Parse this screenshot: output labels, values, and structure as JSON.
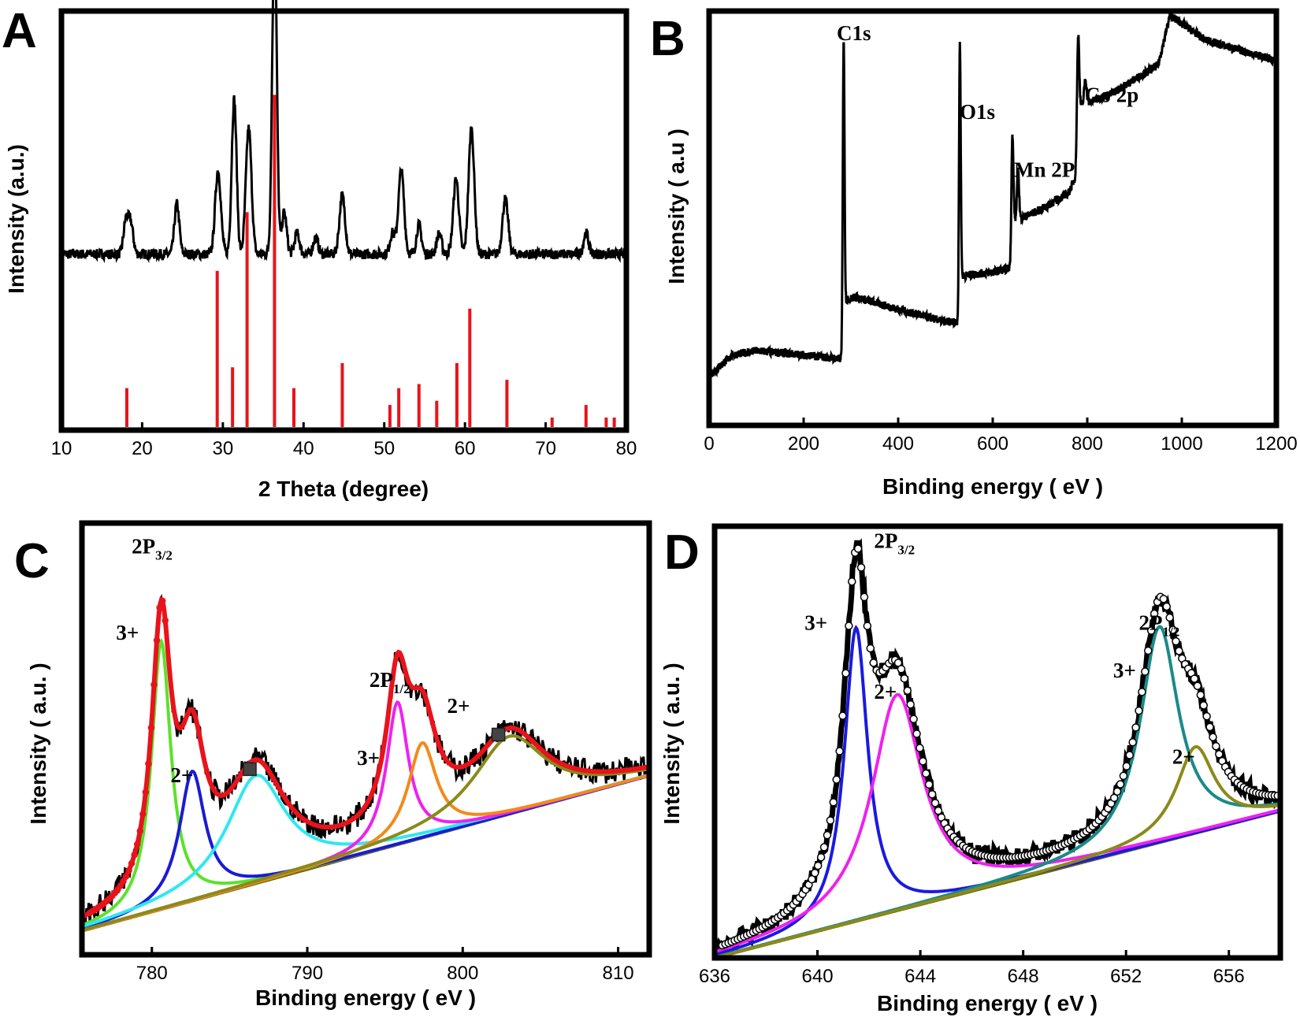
{
  "chart_data": [
    {
      "panel": "A",
      "type": "line",
      "xlabel": "2 Theta (degree)",
      "ylabel": "Intensity (a.u.)",
      "xlim": [
        10,
        80
      ],
      "xticks": [
        "10",
        "20",
        "30",
        "40",
        "50",
        "60",
        "70",
        "80"
      ],
      "series": [
        {
          "color": "#000000",
          "style": "noisy-line",
          "baseline": 0.42,
          "noise": 0.012,
          "peaks": [
            {
              "x": 18.0,
              "h": 0.08,
              "w": 0.3
            },
            {
              "x": 18.6,
              "h": 0.07,
              "w": 0.3
            },
            {
              "x": 24.3,
              "h": 0.12,
              "w": 0.3
            },
            {
              "x": 29.4,
              "h": 0.2,
              "w": 0.35
            },
            {
              "x": 31.4,
              "h": 0.37,
              "w": 0.3
            },
            {
              "x": 33.2,
              "h": 0.3,
              "w": 0.35
            },
            {
              "x": 36.4,
              "h": 0.78,
              "w": 0.28
            },
            {
              "x": 37.6,
              "h": 0.1,
              "w": 0.3
            },
            {
              "x": 39.2,
              "h": 0.05,
              "w": 0.3
            },
            {
              "x": 41.5,
              "h": 0.04,
              "w": 0.3
            },
            {
              "x": 44.8,
              "h": 0.14,
              "w": 0.35
            },
            {
              "x": 51.0,
              "h": 0.05,
              "w": 0.3
            },
            {
              "x": 52.1,
              "h": 0.2,
              "w": 0.35
            },
            {
              "x": 54.3,
              "h": 0.07,
              "w": 0.3
            },
            {
              "x": 56.8,
              "h": 0.05,
              "w": 0.3
            },
            {
              "x": 58.9,
              "h": 0.18,
              "w": 0.35
            },
            {
              "x": 60.8,
              "h": 0.3,
              "w": 0.35
            },
            {
              "x": 65.0,
              "h": 0.13,
              "w": 0.35
            },
            {
              "x": 75.0,
              "h": 0.05,
              "w": 0.3
            }
          ]
        },
        {
          "color": "#e8131b",
          "style": "sticks",
          "x": [
            18.1,
            29.3,
            31.2,
            33.0,
            36.4,
            38.8,
            44.8,
            50.7,
            51.8,
            54.3,
            56.5,
            59.0,
            60.6,
            65.2,
            70.8,
            75.0,
            77.5,
            78.5
          ],
          "h": [
            0.1,
            0.38,
            0.15,
            0.52,
            0.8,
            0.1,
            0.16,
            0.06,
            0.1,
            0.11,
            0.07,
            0.16,
            0.29,
            0.12,
            0.03,
            0.06,
            0.03,
            0.03
          ]
        }
      ]
    },
    {
      "panel": "B",
      "type": "line",
      "xlabel": "Binding energy ( eV )",
      "ylabel": "Intensity ( a.u )",
      "xlim": [
        0,
        1200
      ],
      "xticks": [
        "0",
        "200",
        "400",
        "600",
        "800",
        "1000",
        "1200"
      ],
      "annotations": [
        {
          "text": "C1s",
          "x": 270,
          "y": 0.93
        },
        {
          "text": "O1s",
          "x": 530,
          "y": 0.74
        },
        {
          "text": "Mn 2P",
          "x": 645,
          "y": 0.6
        },
        {
          "text": "Co 2p",
          "x": 795,
          "y": 0.78
        }
      ],
      "series": [
        {
          "color": "#000000",
          "style": "noisy-line",
          "noise": 0.01,
          "points": [
            [
              0,
              0.12
            ],
            [
              50,
              0.17
            ],
            [
              100,
              0.18
            ],
            [
              200,
              0.17
            ],
            [
              283,
              0.16
            ],
            [
              286,
              0.3
            ],
            [
              310,
              0.31
            ],
            [
              400,
              0.28
            ],
            [
              500,
              0.25
            ],
            [
              527,
              0.25
            ],
            [
              530,
              0.36
            ],
            [
              600,
              0.37
            ],
            [
              638,
              0.38
            ],
            [
              641,
              0.49
            ],
            [
              700,
              0.52
            ],
            [
              760,
              0.56
            ],
            [
              775,
              0.6
            ],
            [
              782,
              0.77
            ],
            [
              850,
              0.8
            ],
            [
              950,
              0.87
            ],
            [
              975,
              0.99
            ],
            [
              1050,
              0.93
            ],
            [
              1200,
              0.88
            ]
          ],
          "peaks": [
            {
              "x": 284.5,
              "h": 0.7,
              "w": 1.8
            },
            {
              "x": 530.5,
              "h": 0.56,
              "w": 1.8
            },
            {
              "x": 641.5,
              "h": 0.21,
              "w": 2.2
            },
            {
              "x": 653.5,
              "h": 0.12,
              "w": 2.2
            },
            {
              "x": 780.5,
              "h": 0.2,
              "w": 2.2
            },
            {
              "x": 796,
              "h": 0.06,
              "w": 2.5
            }
          ]
        }
      ]
    },
    {
      "panel": "C",
      "type": "line",
      "xlabel": "Binding energy ( eV )",
      "ylabel": "Intensity ( a.u. )",
      "xlim": [
        775.5,
        812
      ],
      "xticks": [
        "780",
        "790",
        "800",
        "810"
      ],
      "annotations": [
        {
          "text": "2P",
          "sub": "3/2",
          "x": 778.7,
          "y": 0.93
        },
        {
          "text": "3+",
          "x": 777.7,
          "y": 0.73
        },
        {
          "text": "2+",
          "x": 781.2,
          "y": 0.4
        },
        {
          "text": "2P",
          "sub": "1/2",
          "x": 794.0,
          "y": 0.62
        },
        {
          "text": "3+",
          "x": 793.2,
          "y": 0.44
        },
        {
          "text": "2+",
          "x": 799.0,
          "y": 0.56
        }
      ],
      "satellite_markers": [
        {
          "x": 786.3,
          "y": 0.43
        },
        {
          "x": 802.3,
          "y": 0.51
        }
      ],
      "baseline_line": [
        [
          776,
          0.06
        ],
        [
          810.5,
          0.4
        ]
      ],
      "components": [
        {
          "name": "3+",
          "color": "#5ce12c",
          "center": 780.6,
          "height": 0.62,
          "width": 0.75
        },
        {
          "name": "2+",
          "color": "#1a1ad6",
          "center": 782.6,
          "height": 0.3,
          "width": 1.0
        },
        {
          "name": "sat",
          "color": "#2ee8f0",
          "center": 786.7,
          "height": 0.25,
          "width": 2.3
        },
        {
          "name": "3+",
          "color": "#ee22ee",
          "center": 795.8,
          "height": 0.33,
          "width": 0.85
        },
        {
          "name": "2+",
          "color": "#f28a1a",
          "center": 797.4,
          "height": 0.22,
          "width": 1.1
        },
        {
          "name": "sat",
          "color": "#8a8a1a",
          "center": 803.0,
          "height": 0.18,
          "width": 2.8
        }
      ],
      "raw_color": "#000000",
      "fit_color": "#e8131b"
    },
    {
      "panel": "D",
      "type": "line",
      "xlabel": "Binding energy ( eV )",
      "ylabel": "Intensity ( a.u. )",
      "xlim": [
        636,
        658
      ],
      "xticks": [
        "636",
        "640",
        "644",
        "648",
        "652",
        "656"
      ],
      "annotations": [
        {
          "text": "2P",
          "sub": "3/2",
          "x": 642.2,
          "y": 0.95
        },
        {
          "text": "3+",
          "x": 639.5,
          "y": 0.76
        },
        {
          "text": "2+",
          "x": 642.2,
          "y": 0.6
        },
        {
          "text": "2P",
          "sub": "1/2",
          "x": 652.5,
          "y": 0.76
        },
        {
          "text": "3+",
          "x": 651.5,
          "y": 0.65
        },
        {
          "text": "2+",
          "x": 653.8,
          "y": 0.45
        }
      ],
      "baseline_line": [
        [
          636,
          0.0
        ],
        [
          658,
          0.34
        ]
      ],
      "components": [
        {
          "name": "3+",
          "color": "#1a1ae0",
          "center": 641.5,
          "height": 0.68,
          "width": 0.55
        },
        {
          "name": "2+",
          "color": "#ee22ee",
          "center": 643.1,
          "height": 0.5,
          "width": 1.2
        },
        {
          "name": "3+",
          "color": "#1a8a8a",
          "center": 653.3,
          "height": 0.5,
          "width": 0.9
        },
        {
          "name": "2+",
          "color": "#8a8a1a",
          "center": 654.7,
          "height": 0.2,
          "width": 0.9
        }
      ],
      "raw_color": "#000000",
      "fit_color": "#000000"
    }
  ]
}
